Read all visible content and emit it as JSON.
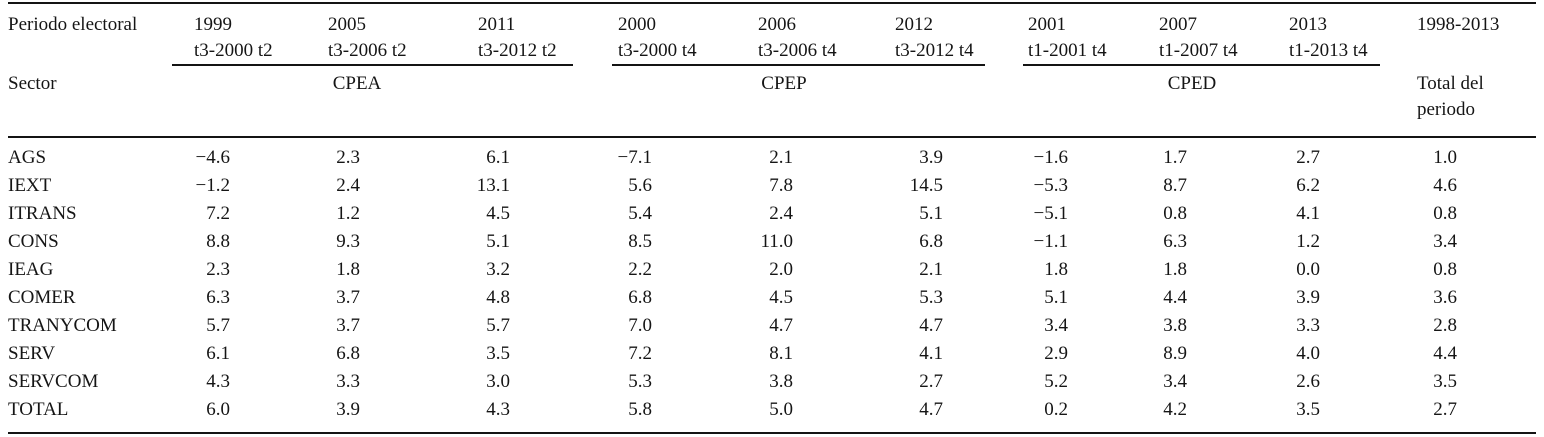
{
  "page": {
    "background_color": "#ffffff",
    "text_color": "#151515",
    "rule_color": "#141414"
  },
  "table": {
    "corner_top": "Periodo electoral",
    "corner_bottom": "Sector",
    "periods": [
      {
        "year": "1999",
        "range": "t3-2000 t2"
      },
      {
        "year": "2005",
        "range": "t3-2006 t2"
      },
      {
        "year": "2011",
        "range": "t3-2012 t2"
      },
      {
        "year": "2000",
        "range": "t3-2000 t4"
      },
      {
        "year": "2006",
        "range": "t3-2006 t4"
      },
      {
        "year": "2012",
        "range": "t3-2012 t4"
      },
      {
        "year": "2001",
        "range": "t1-2001 t4"
      },
      {
        "year": "2007",
        "range": "t1-2007 t4"
      },
      {
        "year": "2013",
        "range": "t1-2013 t4"
      }
    ],
    "total_header": "1998-2013",
    "total_label": "Total del periodo",
    "groups": [
      {
        "label": "CPEA"
      },
      {
        "label": "CPEP"
      },
      {
        "label": "CPED"
      }
    ],
    "rows": [
      {
        "sector": "AGS",
        "values": [
          "−4.6",
          "2.3",
          "6.1",
          "−7.1",
          "2.1",
          "3.9",
          "−1.6",
          "1.7",
          "2.7",
          "1.0"
        ]
      },
      {
        "sector": "IEXT",
        "values": [
          "−1.2",
          "2.4",
          "13.1",
          "5.6",
          "7.8",
          "14.5",
          "−5.3",
          "8.7",
          "6.2",
          "4.6"
        ]
      },
      {
        "sector": "ITRANS",
        "values": [
          "7.2",
          "1.2",
          "4.5",
          "5.4",
          "2.4",
          "5.1",
          "−5.1",
          "0.8",
          "4.1",
          "0.8"
        ]
      },
      {
        "sector": "CONS",
        "values": [
          "8.8",
          "9.3",
          "5.1",
          "8.5",
          "11.0",
          "6.8",
          "−1.1",
          "6.3",
          "1.2",
          "3.4"
        ]
      },
      {
        "sector": "IEAG",
        "values": [
          "2.3",
          "1.8",
          "3.2",
          "2.2",
          "2.0",
          "2.1",
          "1.8",
          "1.8",
          "0.0",
          "0.8"
        ]
      },
      {
        "sector": "COMER",
        "values": [
          "6.3",
          "3.7",
          "4.8",
          "6.8",
          "4.5",
          "5.3",
          "5.1",
          "4.4",
          "3.9",
          "3.6"
        ]
      },
      {
        "sector": "TRANYCOM",
        "values": [
          "5.7",
          "3.7",
          "5.7",
          "7.0",
          "4.7",
          "4.7",
          "3.4",
          "3.8",
          "3.3",
          "2.8"
        ]
      },
      {
        "sector": "SERV",
        "values": [
          "6.1",
          "6.8",
          "3.5",
          "7.2",
          "8.1",
          "4.1",
          "2.9",
          "8.9",
          "4.0",
          "4.4"
        ]
      },
      {
        "sector": "SERVCOM",
        "values": [
          "4.3",
          "3.3",
          "3.0",
          "5.3",
          "3.8",
          "2.7",
          "5.2",
          "3.4",
          "2.6",
          "3.5"
        ]
      },
      {
        "sector": "TOTAL",
        "values": [
          "6.0",
          "3.9",
          "4.3",
          "5.8",
          "5.0",
          "4.7",
          "0.2",
          "4.2",
          "3.5",
          "2.7"
        ]
      }
    ]
  }
}
